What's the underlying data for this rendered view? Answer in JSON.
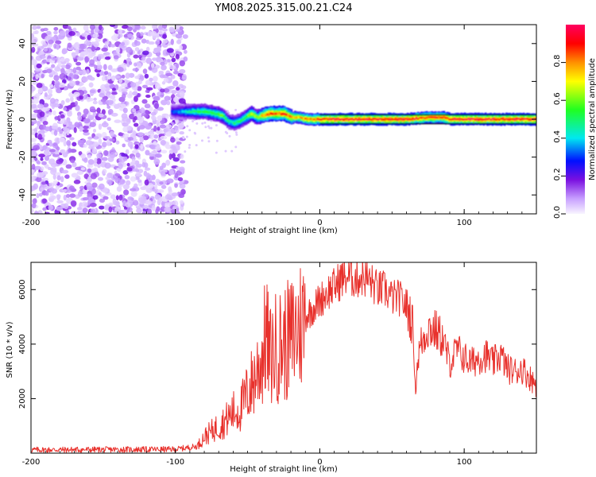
{
  "title": "YM08.2025.315.00.21.C24",
  "chart_data": [
    {
      "type": "heatmap",
      "xlabel": "Height of straight line (km)",
      "ylabel": "Frequency (Hz)",
      "xlim": [
        -200,
        150
      ],
      "ylim": [
        -50,
        50
      ],
      "xticks": [
        -200,
        -100,
        0,
        100
      ],
      "yticks": [
        -40,
        -20,
        0,
        20,
        40
      ],
      "colorbar": {
        "label": "Normalized spectral amplitude",
        "range": [
          0,
          1
        ],
        "ticks": [
          "0.0",
          "0.2",
          "0.4",
          "0.6",
          "0.8"
        ],
        "tick_values": [
          0.0,
          0.2,
          0.4,
          0.6,
          0.8
        ]
      },
      "noise_region": {
        "x_from": -200,
        "x_to": -93,
        "max_amplitude": 0.15
      },
      "ridge": {
        "x": [
          -103,
          -95,
          -88,
          -80,
          -73,
          -68,
          -64,
          -60,
          -56,
          -52,
          -48,
          -44,
          -40,
          -35,
          -30,
          -25,
          -20,
          -15,
          -10,
          -5,
          0,
          10,
          20,
          40,
          60,
          75,
          85,
          90,
          100,
          120,
          150
        ],
        "freq": [
          4,
          4,
          4,
          4,
          3,
          2,
          -1,
          -2,
          -1,
          1,
          3,
          1,
          2,
          3,
          3,
          3,
          1,
          1,
          0,
          0,
          0,
          0,
          0,
          0,
          0,
          1,
          1,
          0,
          0,
          0,
          0
        ],
        "amplitude": [
          0.3,
          0.4,
          0.5,
          0.55,
          0.55,
          0.6,
          0.45,
          0.5,
          0.5,
          0.55,
          0.7,
          0.6,
          0.8,
          0.9,
          0.85,
          0.9,
          0.8,
          0.75,
          0.85,
          0.85,
          0.9,
          0.95,
          0.95,
          0.95,
          0.95,
          0.9,
          0.9,
          0.95,
          0.95,
          0.95,
          0.95
        ]
      }
    },
    {
      "type": "line",
      "xlabel": "Height of straight line (km)",
      "ylabel": "SNR (10 * v/v)",
      "xlim": [
        -200,
        150
      ],
      "ylim": [
        0,
        7000
      ],
      "xticks": [
        -200,
        -100,
        0,
        100
      ],
      "yticks": [
        2000,
        4000,
        6000
      ],
      "color": "#e8312c",
      "series": [
        {
          "name": "SNR",
          "x": [
            -200,
            -150,
            -100,
            -85,
            -80,
            -75,
            -70,
            -65,
            -60,
            -55,
            -50,
            -45,
            -40,
            -37,
            -35,
            -30,
            -25,
            -20,
            -15,
            -10,
            -5,
            0,
            5,
            10,
            15,
            20,
            25,
            30,
            35,
            40,
            45,
            50,
            55,
            60,
            63,
            65,
            66,
            68,
            70,
            75,
            80,
            85,
            90,
            95,
            100,
            105,
            110,
            115,
            120,
            125,
            130,
            135,
            140,
            145,
            150
          ],
          "values": [
            120,
            130,
            140,
            250,
            600,
            800,
            1000,
            1200,
            1500,
            1600,
            2200,
            2800,
            3500,
            4400,
            3500,
            3900,
            4000,
            4200,
            4600,
            5000,
            5300,
            5600,
            5900,
            6100,
            6400,
            6500,
            6400,
            6500,
            6300,
            6000,
            6000,
            5700,
            5700,
            5400,
            5000,
            4400,
            2300,
            3500,
            4000,
            4600,
            4500,
            4200,
            3300,
            3800,
            3500,
            3300,
            3500,
            3600,
            3300,
            3600,
            3100,
            3000,
            3100,
            2800,
            2500
          ]
        }
      ]
    }
  ]
}
